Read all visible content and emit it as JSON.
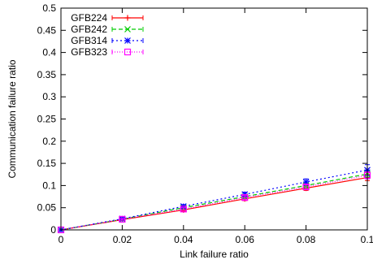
{
  "chart_data": {
    "type": "line",
    "title": "",
    "xlabel": "Link failure ratio",
    "ylabel": "Communication failure ratio",
    "xlim": [
      0,
      0.1
    ],
    "ylim": [
      0,
      0.5
    ],
    "xticks": [
      "0",
      "0.02",
      "0.04",
      "0.06",
      "0.08",
      "0.1"
    ],
    "yticks": [
      "0",
      "0.05",
      "0.1",
      "0.15",
      "0.2",
      "0.25",
      "0.3",
      "0.35",
      "0.4",
      "0.45",
      "0.5"
    ],
    "legend_position": "top-left",
    "grid": false,
    "x": [
      0,
      0.02,
      0.04,
      0.06,
      0.08,
      0.1
    ],
    "series": [
      {
        "name": "GFB224",
        "color": "#ff0000",
        "marker": "plus",
        "dash": "solid",
        "values": [
          0,
          0.023,
          0.045,
          0.07,
          0.094,
          0.118
        ],
        "error": [
          0,
          0.002,
          0.003,
          0.004,
          0.005,
          0.007
        ]
      },
      {
        "name": "GFB242",
        "color": "#00cc00",
        "marker": "cross",
        "dash": "dashed",
        "values": [
          0,
          0.024,
          0.05,
          0.075,
          0.1,
          0.126
        ],
        "error": [
          0,
          0.002,
          0.003,
          0.004,
          0.005,
          0.007
        ]
      },
      {
        "name": "GFB314",
        "color": "#0000ff",
        "marker": "star",
        "dash": "dotted",
        "values": [
          0,
          0.025,
          0.053,
          0.08,
          0.108,
          0.135
        ],
        "error": [
          0,
          0.002,
          0.004,
          0.005,
          0.007,
          0.012
        ]
      },
      {
        "name": "GFB323",
        "color": "#ff00ff",
        "marker": "square",
        "dash": "fine-dotted",
        "values": [
          0,
          0.024,
          0.047,
          0.073,
          0.097,
          0.123
        ],
        "error": [
          0,
          0.002,
          0.003,
          0.004,
          0.005,
          0.008
        ]
      }
    ]
  }
}
